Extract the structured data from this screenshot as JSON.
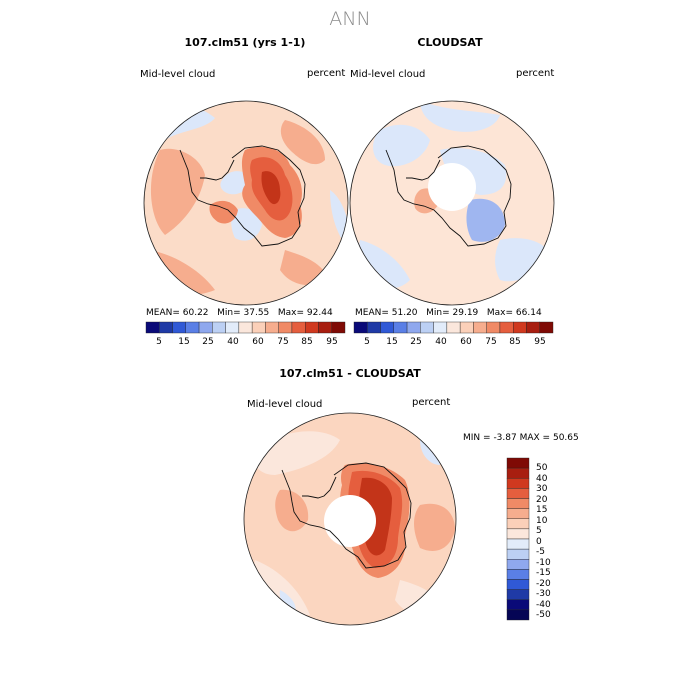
{
  "figure_title": "ANN",
  "panels": [
    {
      "title": "107.clm51 (yrs 1-1)",
      "variable": "Mid-level cloud",
      "units": "percent",
      "stats": {
        "mean_label": "MEAN=",
        "mean": "60.22",
        "min_label": "Min=",
        "min": "37.55",
        "max_label": "Max=",
        "max": "92.44"
      }
    },
    {
      "title": "CLOUDSAT",
      "variable": "Mid-level cloud",
      "units": "percent",
      "stats": {
        "mean_label": "MEAN=",
        "mean": "51.20",
        "min_label": "Min=",
        "min": "29.19",
        "max_label": "Max=",
        "max": "66.14"
      }
    },
    {
      "title": "107.clm51 - CLOUDSAT",
      "variable": "Mid-level cloud",
      "units": "percent",
      "stats": {
        "min_label": "MIN =",
        "min": "-3.87",
        "max_label": "MAX =",
        "max": "50.65"
      }
    }
  ],
  "horizontal_colorbar": {
    "ticks": [
      "5",
      "15",
      "25",
      "40",
      "60",
      "75",
      "85",
      "95"
    ],
    "colors": [
      "#0a0a78",
      "#1f3aa6",
      "#3059d6",
      "#5a7fe6",
      "#8fa8ee",
      "#bcd0f4",
      "#e2ecfa",
      "#fbe7dc",
      "#fbd0b9",
      "#f6ad8e",
      "#f08a66",
      "#e55e3e",
      "#d0391f",
      "#a81e10",
      "#7f0a05"
    ]
  },
  "vertical_colorbar": {
    "ticks": [
      "50",
      "40",
      "30",
      "20",
      "15",
      "10",
      "5",
      "0",
      "-5",
      "-10",
      "-15",
      "-20",
      "-30",
      "-40",
      "-50"
    ],
    "colors": [
      "#7f0a05",
      "#a81e10",
      "#d0391f",
      "#e55e3e",
      "#f08a66",
      "#f6ad8e",
      "#fbd0b9",
      "#fbe7dc",
      "#e2ecfa",
      "#bcd0f4",
      "#8fa8ee",
      "#5a7fe6",
      "#3059d6",
      "#1f3aa6",
      "#0a0a78",
      "#050555"
    ]
  },
  "colors": {
    "light_red": "#fbdcc8",
    "med_red": "#f6ad8e",
    "red": "#e55e3e",
    "dark_red": "#b8200f",
    "light_blue": "#dbe7fa",
    "blue": "#9fb6f0",
    "ocean_base": "#fde8da"
  }
}
